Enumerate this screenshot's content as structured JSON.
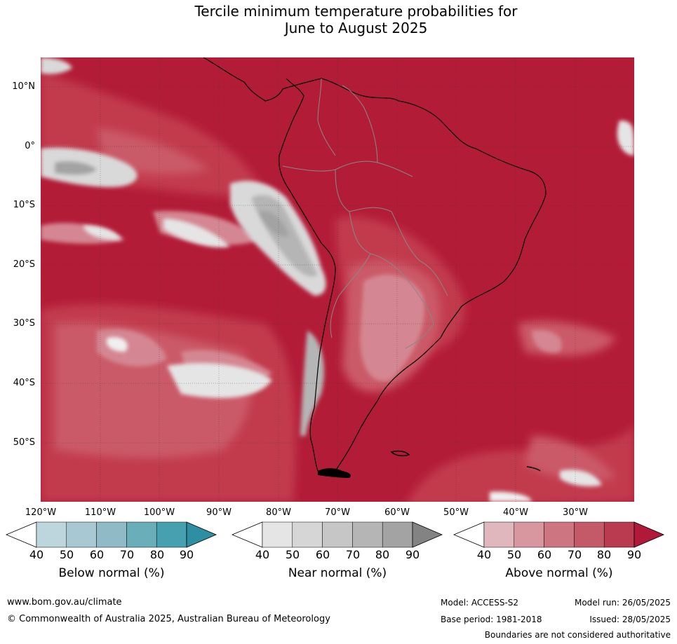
{
  "title": {
    "line1": "Tercile minimum temperature probabilities for",
    "line2": "June to August 2025"
  },
  "map": {
    "lat_labels": [
      "10°N",
      "0°",
      "10°S",
      "20°S",
      "30°S",
      "40°S",
      "50°S"
    ],
    "lon_labels": [
      "120°W",
      "110°W",
      "100°W",
      "90°W",
      "80°W",
      "70°W",
      "60°W",
      "50°W",
      "40°W",
      "30°W"
    ],
    "colors": {
      "above_90": "#b31c37",
      "above_80": "#c23a4e",
      "above_70": "#cb5a68",
      "above_60": "#d48692",
      "above_50": "#dba5ad",
      "near_50": "#d9d9d9",
      "near_70": "#b5b5b5",
      "near_80": "#a3a3a3",
      "white": "#f5f5f5"
    }
  },
  "legend": {
    "ticks": [
      "40",
      "50",
      "60",
      "70",
      "80",
      "90"
    ],
    "below": {
      "title": "Below normal (%)",
      "colors": [
        "#ffffff",
        "#bdd5dc",
        "#a8c9d1",
        "#8fbac6",
        "#6aaeba",
        "#46a0b0",
        "#2e8fa3"
      ]
    },
    "near": {
      "title": "Near normal (%)",
      "colors": [
        "#ffffff",
        "#e5e5e5",
        "#d6d6d6",
        "#c6c6c6",
        "#b5b5b5",
        "#a3a3a3",
        "#838383"
      ]
    },
    "above": {
      "title": "Above normal (%)",
      "colors": [
        "#ffffff",
        "#e0b7bd",
        "#d8979f",
        "#cd7581",
        "#c45968",
        "#ba3a4f",
        "#b0193a"
      ]
    }
  },
  "footer": {
    "website": "www.bom.gov.au/climate",
    "copyright": "© Commonwealth of Australia 2025, Australian Bureau of Meteorology",
    "model": "Model: ACCESS-S2",
    "model_run": "Model run: 26/05/2025",
    "base_period": "Base period: 1981-2018",
    "issued": "Issued: 28/05/2025",
    "disclaimer": "Boundaries are not considered authoritative"
  }
}
